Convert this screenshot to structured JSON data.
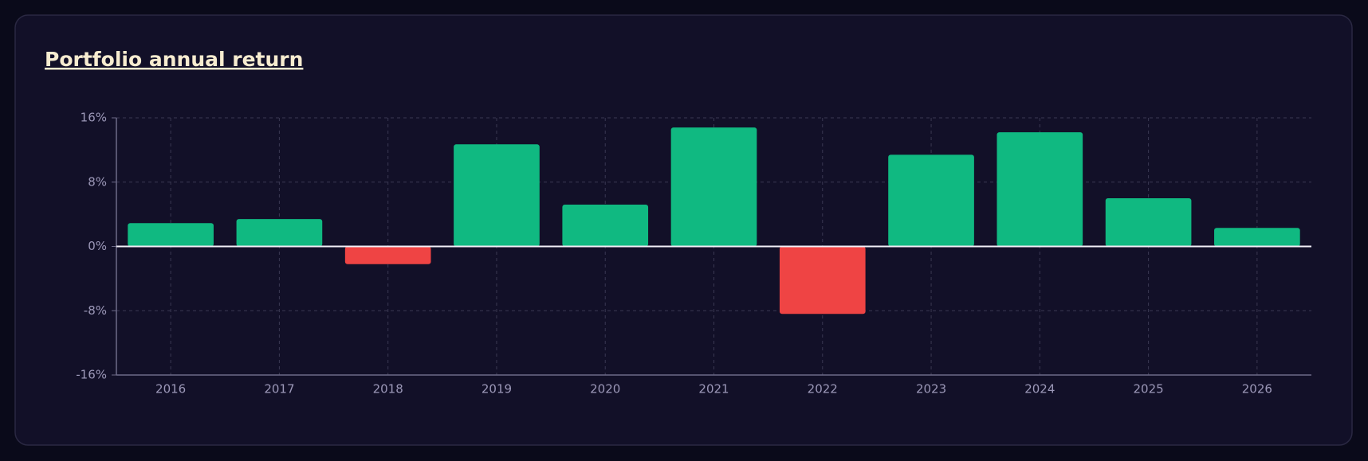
{
  "chart_data": {
    "type": "bar",
    "title": "Portfolio annual return",
    "categories": [
      "2016",
      "2017",
      "2018",
      "2019",
      "2020",
      "2021",
      "2022",
      "2023",
      "2024",
      "2025",
      "2026"
    ],
    "values": [
      2.9,
      3.4,
      -2.2,
      12.7,
      5.2,
      14.8,
      -8.4,
      11.4,
      14.2,
      6.0,
      2.3
    ],
    "positive_color": "#10b981",
    "negative_color": "#ef4444",
    "ylim": [
      -16,
      16
    ],
    "yticks": [
      {
        "value": -16,
        "label": "-16%"
      },
      {
        "value": -8,
        "label": "-8%"
      },
      {
        "value": 0,
        "label": "0%"
      },
      {
        "value": 8,
        "label": "8%"
      },
      {
        "value": 16,
        "label": "16%"
      }
    ],
    "grid": true
  }
}
